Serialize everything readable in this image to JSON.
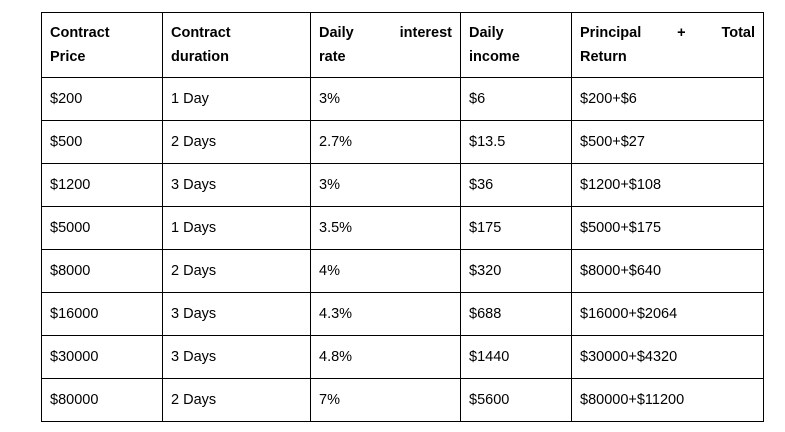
{
  "table": {
    "headers": [
      {
        "line1": [
          "Contract"
        ],
        "line2": "Price"
      },
      {
        "line1": [
          "Contract"
        ],
        "line2": "duration"
      },
      {
        "line1": [
          "Daily",
          "interest"
        ],
        "line2": "rate"
      },
      {
        "line1": [
          "Daily"
        ],
        "line2": "income"
      },
      {
        "line1": [
          "Principal",
          "+",
          "Total"
        ],
        "line2": "Return"
      }
    ],
    "rows": [
      [
        "$200",
        "1 Day",
        "3%",
        "$6",
        "$200+$6"
      ],
      [
        "$500",
        "2 Days",
        "2.7%",
        "$13.5",
        "$500+$27"
      ],
      [
        "$1200",
        "3 Days",
        "3%",
        "$36",
        "$1200+$108"
      ],
      [
        "$5000",
        "1 Days",
        "3.5%",
        "$175",
        "$5000+$175"
      ],
      [
        "$8000",
        "2 Days",
        "4%",
        "$320",
        "$8000+$640"
      ],
      [
        "$16000",
        "3 Days",
        "4.3%",
        "$688",
        "$16000+$2064"
      ],
      [
        "$30000",
        "3 Days",
        "4.8%",
        "$1440",
        "$30000+$4320"
      ],
      [
        "$80000",
        "2 Days",
        "7%",
        "$5600",
        "$80000+$11200"
      ]
    ]
  }
}
